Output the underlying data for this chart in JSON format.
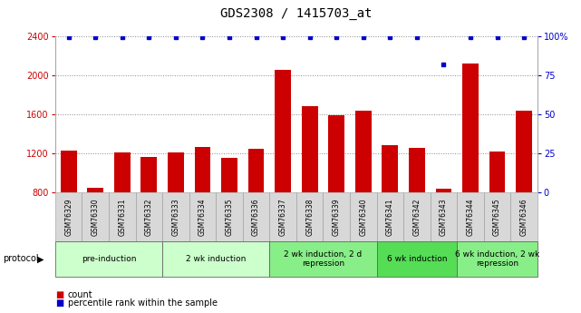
{
  "title": "GDS2308 / 1415703_at",
  "samples": [
    "GSM76329",
    "GSM76330",
    "GSM76331",
    "GSM76332",
    "GSM76333",
    "GSM76334",
    "GSM76335",
    "GSM76336",
    "GSM76337",
    "GSM76338",
    "GSM76339",
    "GSM76340",
    "GSM76341",
    "GSM76342",
    "GSM76343",
    "GSM76344",
    "GSM76345",
    "GSM76346"
  ],
  "counts": [
    1230,
    845,
    1210,
    1160,
    1210,
    1270,
    1150,
    1250,
    2050,
    1680,
    1590,
    1640,
    1280,
    1260,
    840,
    2120,
    1220,
    1640
  ],
  "percentiles": [
    99,
    99,
    99,
    99,
    99,
    99,
    99,
    99,
    99,
    99,
    99,
    99,
    99,
    99,
    82,
    99,
    99,
    99
  ],
  "ylim_left": [
    800,
    2400
  ],
  "ylim_right": [
    0,
    100
  ],
  "yticks_left": [
    800,
    1200,
    1600,
    2000,
    2400
  ],
  "yticks_right": [
    0,
    25,
    50,
    75,
    100
  ],
  "bar_color": "#cc0000",
  "dot_color": "#0000cc",
  "bar_width": 0.6,
  "protocol_groups": [
    {
      "label": "pre-induction",
      "start": 0,
      "end": 3,
      "color": "#ccffcc"
    },
    {
      "label": "2 wk induction",
      "start": 4,
      "end": 7,
      "color": "#ccffcc"
    },
    {
      "label": "2 wk induction, 2 d\nrepression",
      "start": 8,
      "end": 11,
      "color": "#88ee88"
    },
    {
      "label": "6 wk induction",
      "start": 12,
      "end": 14,
      "color": "#55dd55"
    },
    {
      "label": "6 wk induction, 2 wk\nrepression",
      "start": 15,
      "end": 17,
      "color": "#88ee88"
    }
  ],
  "grid_color": "#888888",
  "background_color": "#ffffff",
  "title_fontsize": 10,
  "tick_fontsize": 7,
  "sample_fontsize": 5.5,
  "proto_fontsize": 7,
  "legend_fontsize": 7
}
